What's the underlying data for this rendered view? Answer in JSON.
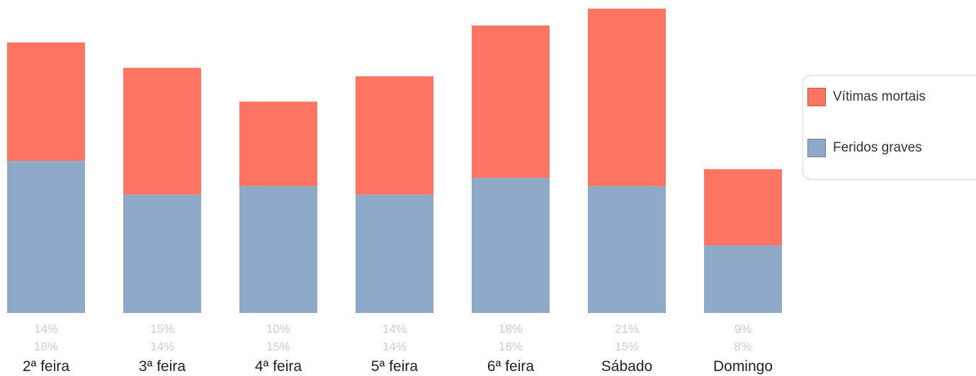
{
  "chart_data": {
    "type": "bar",
    "stacked": true,
    "categories": [
      "2ª feira",
      "3ª feira",
      "4ª feira",
      "5ª feira",
      "6ª feira",
      "Sábado",
      "Domingo"
    ],
    "series": [
      {
        "name": "Feridos graves",
        "color": "#8fa9c8",
        "values": [
          18,
          14,
          15,
          14,
          16,
          15,
          8
        ],
        "labels": [
          "18%",
          "14%",
          "15%",
          "14%",
          "16%",
          "15%",
          "8%"
        ]
      },
      {
        "name": "Vítimas mortais",
        "color": "#fc7563",
        "values": [
          14,
          15,
          10,
          14,
          18,
          21,
          9
        ],
        "labels": [
          "14%",
          "15%",
          "10%",
          "14%",
          "18%",
          "21%",
          "9%"
        ]
      }
    ],
    "legend_position": "right",
    "grid": false
  }
}
